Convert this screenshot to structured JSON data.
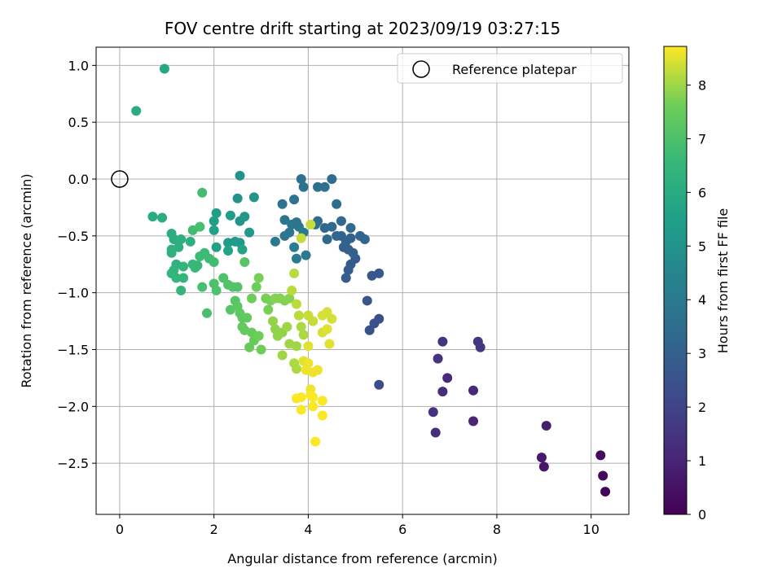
{
  "chart_data": {
    "type": "scatter",
    "title": "FOV centre drift starting at 2023/09/19 03:27:15",
    "xlabel": "Angular distance from reference (arcmin)",
    "ylabel": "Rotation from reference (arcmin)",
    "xlim": [
      -0.5,
      10.8
    ],
    "ylim": [
      -2.95,
      1.16
    ],
    "xticks": [
      0,
      2,
      4,
      6,
      8,
      10
    ],
    "yticks": [
      1.0,
      0.5,
      0.0,
      -0.5,
      -1.0,
      -1.5,
      -2.0,
      -2.5
    ],
    "xtick_labels": [
      "0",
      "2",
      "4",
      "6",
      "8",
      "10"
    ],
    "ytick_labels": [
      "1.0",
      "0.5",
      "0.0",
      "−0.5",
      "−1.0",
      "−1.5",
      "−2.0",
      "−2.5"
    ],
    "grid": true,
    "legend": {
      "location": "top-right",
      "entries": [
        "Reference platepar"
      ]
    },
    "reference_point": {
      "x": 0,
      "y": 0
    },
    "colorbar": {
      "label": "Hours from first FF file",
      "colormap": "viridis",
      "range": [
        0,
        8.72
      ],
      "ticks": [
        0,
        1,
        2,
        3,
        4,
        5,
        6,
        7,
        8
      ],
      "tick_labels": [
        "0",
        "1",
        "2",
        "3",
        "4",
        "5",
        "6",
        "7",
        "8"
      ]
    },
    "points": [
      {
        "x": 10.3,
        "y": -2.75,
        "c": 0.1
      },
      {
        "x": 10.25,
        "y": -2.61,
        "c": 0.2
      },
      {
        "x": 10.2,
        "y": -2.43,
        "c": 0.3
      },
      {
        "x": 9.0,
        "y": -2.53,
        "c": 0.6
      },
      {
        "x": 8.95,
        "y": -2.45,
        "c": 0.7
      },
      {
        "x": 9.05,
        "y": -2.17,
        "c": 0.8
      },
      {
        "x": 7.5,
        "y": -2.13,
        "c": 1.0
      },
      {
        "x": 7.5,
        "y": -1.86,
        "c": 1.1
      },
      {
        "x": 6.95,
        "y": -1.75,
        "c": 1.2
      },
      {
        "x": 6.85,
        "y": -1.87,
        "c": 1.3
      },
      {
        "x": 6.7,
        "y": -2.23,
        "c": 1.3
      },
      {
        "x": 6.65,
        "y": -2.05,
        "c": 1.4
      },
      {
        "x": 6.75,
        "y": -1.58,
        "c": 1.5
      },
      {
        "x": 6.85,
        "y": -1.43,
        "c": 1.5
      },
      {
        "x": 7.6,
        "y": -1.43,
        "c": 1.6
      },
      {
        "x": 7.65,
        "y": -1.48,
        "c": 1.6
      },
      {
        "x": 5.5,
        "y": -1.81,
        "c": 2.3
      },
      {
        "x": 5.5,
        "y": -1.23,
        "c": 2.4
      },
      {
        "x": 5.4,
        "y": -1.27,
        "c": 2.5
      },
      {
        "x": 5.3,
        "y": -1.33,
        "c": 2.5
      },
      {
        "x": 5.25,
        "y": -1.07,
        "c": 2.6
      },
      {
        "x": 5.5,
        "y": -0.83,
        "c": 2.7
      },
      {
        "x": 5.35,
        "y": -0.85,
        "c": 2.7
      },
      {
        "x": 4.8,
        "y": -0.87,
        "c": 2.8
      },
      {
        "x": 5.0,
        "y": -0.7,
        "c": 2.8
      },
      {
        "x": 4.9,
        "y": -0.75,
        "c": 2.9
      },
      {
        "x": 4.85,
        "y": -0.8,
        "c": 2.9
      },
      {
        "x": 4.95,
        "y": -0.65,
        "c": 3.0
      },
      {
        "x": 4.85,
        "y": -0.62,
        "c": 3.0
      },
      {
        "x": 4.75,
        "y": -0.6,
        "c": 3.0
      },
      {
        "x": 4.8,
        "y": -0.55,
        "c": 3.1
      },
      {
        "x": 4.7,
        "y": -0.5,
        "c": 3.1
      },
      {
        "x": 4.9,
        "y": -0.52,
        "c": 3.1
      },
      {
        "x": 5.1,
        "y": -0.5,
        "c": 3.2
      },
      {
        "x": 5.2,
        "y": -0.53,
        "c": 3.2
      },
      {
        "x": 4.6,
        "y": -0.5,
        "c": 3.2
      },
      {
        "x": 4.4,
        "y": -0.53,
        "c": 3.3
      },
      {
        "x": 4.5,
        "y": -0.42,
        "c": 3.3
      },
      {
        "x": 4.35,
        "y": -0.43,
        "c": 3.3
      },
      {
        "x": 4.9,
        "y": -0.43,
        "c": 3.4
      },
      {
        "x": 4.7,
        "y": -0.37,
        "c": 3.4
      },
      {
        "x": 4.2,
        "y": -0.37,
        "c": 3.4
      },
      {
        "x": 4.15,
        "y": -0.4,
        "c": 3.5
      },
      {
        "x": 4.6,
        "y": -0.22,
        "c": 3.5
      },
      {
        "x": 4.5,
        "y": 0.0,
        "c": 3.5
      },
      {
        "x": 4.2,
        "y": -0.07,
        "c": 3.6
      },
      {
        "x": 4.35,
        "y": -0.07,
        "c": 3.6
      },
      {
        "x": 3.85,
        "y": 0.0,
        "c": 3.6
      },
      {
        "x": 3.9,
        "y": -0.07,
        "c": 3.7
      },
      {
        "x": 3.7,
        "y": -0.18,
        "c": 3.7
      },
      {
        "x": 3.45,
        "y": -0.22,
        "c": 3.7
      },
      {
        "x": 3.5,
        "y": -0.36,
        "c": 3.8
      },
      {
        "x": 3.65,
        "y": -0.4,
        "c": 3.8
      },
      {
        "x": 3.75,
        "y": -0.38,
        "c": 3.8
      },
      {
        "x": 3.8,
        "y": -0.42,
        "c": 3.9
      },
      {
        "x": 3.6,
        "y": -0.47,
        "c": 3.9
      },
      {
        "x": 3.5,
        "y": -0.5,
        "c": 3.9
      },
      {
        "x": 3.3,
        "y": -0.55,
        "c": 4.0
      },
      {
        "x": 3.95,
        "y": -0.67,
        "c": 4.0
      },
      {
        "x": 3.75,
        "y": -0.7,
        "c": 4.1
      },
      {
        "x": 3.9,
        "y": -0.47,
        "c": 4.1
      },
      {
        "x": 3.7,
        "y": -0.6,
        "c": 4.2
      },
      {
        "x": 2.55,
        "y": 0.03,
        "c": 5.0
      },
      {
        "x": 2.5,
        "y": -0.17,
        "c": 5.0
      },
      {
        "x": 2.85,
        "y": -0.16,
        "c": 5.1
      },
      {
        "x": 2.55,
        "y": -0.37,
        "c": 5.1
      },
      {
        "x": 2.65,
        "y": -0.33,
        "c": 5.2
      },
      {
        "x": 2.75,
        "y": -0.47,
        "c": 5.2
      },
      {
        "x": 2.55,
        "y": -0.56,
        "c": 5.3
      },
      {
        "x": 2.45,
        "y": -0.55,
        "c": 5.3
      },
      {
        "x": 2.3,
        "y": -0.56,
        "c": 5.4
      },
      {
        "x": 2.35,
        "y": -0.32,
        "c": 5.4
      },
      {
        "x": 2.05,
        "y": -0.3,
        "c": 5.5
      },
      {
        "x": 2.0,
        "y": -0.37,
        "c": 5.5
      },
      {
        "x": 2.0,
        "y": -0.45,
        "c": 5.6
      },
      {
        "x": 2.05,
        "y": -0.6,
        "c": 5.6
      },
      {
        "x": 2.3,
        "y": -0.63,
        "c": 5.7
      },
      {
        "x": 2.6,
        "y": -0.62,
        "c": 5.7
      },
      {
        "x": 0.95,
        "y": 0.97,
        "c": 5.9
      },
      {
        "x": 0.35,
        "y": 0.6,
        "c": 6.0
      },
      {
        "x": 0.7,
        "y": -0.33,
        "c": 6.0
      },
      {
        "x": 0.9,
        "y": -0.34,
        "c": 6.1
      },
      {
        "x": 1.1,
        "y": -0.48,
        "c": 6.1
      },
      {
        "x": 1.15,
        "y": -0.53,
        "c": 6.1
      },
      {
        "x": 1.3,
        "y": -0.53,
        "c": 6.2
      },
      {
        "x": 1.5,
        "y": -0.55,
        "c": 6.2
      },
      {
        "x": 1.25,
        "y": -0.6,
        "c": 6.2
      },
      {
        "x": 1.1,
        "y": -0.62,
        "c": 6.3
      },
      {
        "x": 1.1,
        "y": -0.65,
        "c": 6.3
      },
      {
        "x": 1.2,
        "y": -0.75,
        "c": 6.3
      },
      {
        "x": 1.35,
        "y": -0.77,
        "c": 6.4
      },
      {
        "x": 1.15,
        "y": -0.8,
        "c": 6.4
      },
      {
        "x": 1.1,
        "y": -0.83,
        "c": 6.4
      },
      {
        "x": 1.2,
        "y": -0.87,
        "c": 6.5
      },
      {
        "x": 1.35,
        "y": -0.87,
        "c": 6.5
      },
      {
        "x": 1.3,
        "y": -0.98,
        "c": 6.5
      },
      {
        "x": 1.55,
        "y": -0.75,
        "c": 6.6
      },
      {
        "x": 1.65,
        "y": -0.76,
        "c": 6.6
      },
      {
        "x": 1.6,
        "y": -0.78,
        "c": 6.6
      },
      {
        "x": 1.7,
        "y": -0.68,
        "c": 6.7
      },
      {
        "x": 1.8,
        "y": -0.65,
        "c": 6.7
      },
      {
        "x": 1.9,
        "y": -0.7,
        "c": 6.7
      },
      {
        "x": 2.0,
        "y": -0.73,
        "c": 6.8
      },
      {
        "x": 1.75,
        "y": -0.12,
        "c": 6.8
      },
      {
        "x": 1.55,
        "y": -0.45,
        "c": 6.8
      },
      {
        "x": 1.7,
        "y": -0.42,
        "c": 6.9
      },
      {
        "x": 1.75,
        "y": -0.95,
        "c": 6.9
      },
      {
        "x": 1.85,
        "y": -1.18,
        "c": 6.9
      },
      {
        "x": 2.0,
        "y": -0.92,
        "c": 7.0
      },
      {
        "x": 2.05,
        "y": -0.98,
        "c": 7.0
      },
      {
        "x": 2.2,
        "y": -0.87,
        "c": 7.0
      },
      {
        "x": 2.3,
        "y": -0.93,
        "c": 7.1
      },
      {
        "x": 2.4,
        "y": -0.95,
        "c": 7.1
      },
      {
        "x": 2.5,
        "y": -0.95,
        "c": 7.1
      },
      {
        "x": 2.65,
        "y": -0.73,
        "c": 7.2
      },
      {
        "x": 2.35,
        "y": -1.15,
        "c": 7.2
      },
      {
        "x": 2.45,
        "y": -1.07,
        "c": 7.2
      },
      {
        "x": 2.5,
        "y": -1.12,
        "c": 7.3
      },
      {
        "x": 2.55,
        "y": -1.18,
        "c": 7.3
      },
      {
        "x": 2.6,
        "y": -1.22,
        "c": 7.3
      },
      {
        "x": 2.6,
        "y": -1.3,
        "c": 7.4
      },
      {
        "x": 2.7,
        "y": -1.22,
        "c": 7.4
      },
      {
        "x": 2.65,
        "y": -1.33,
        "c": 7.4
      },
      {
        "x": 2.8,
        "y": -1.35,
        "c": 7.5
      },
      {
        "x": 2.75,
        "y": -1.48,
        "c": 7.5
      },
      {
        "x": 2.85,
        "y": -1.42,
        "c": 7.5
      },
      {
        "x": 2.95,
        "y": -1.38,
        "c": 7.6
      },
      {
        "x": 3.0,
        "y": -1.5,
        "c": 7.6
      },
      {
        "x": 2.8,
        "y": -1.05,
        "c": 7.6
      },
      {
        "x": 2.9,
        "y": -0.95,
        "c": 7.6
      },
      {
        "x": 2.95,
        "y": -0.87,
        "c": 7.7
      },
      {
        "x": 3.1,
        "y": -1.05,
        "c": 7.7
      },
      {
        "x": 3.15,
        "y": -1.15,
        "c": 7.7
      },
      {
        "x": 3.2,
        "y": -1.07,
        "c": 7.7
      },
      {
        "x": 3.3,
        "y": -1.05,
        "c": 7.8
      },
      {
        "x": 3.4,
        "y": -1.05,
        "c": 7.8
      },
      {
        "x": 3.5,
        "y": -1.07,
        "c": 7.8
      },
      {
        "x": 3.6,
        "y": -1.05,
        "c": 7.8
      },
      {
        "x": 3.25,
        "y": -1.25,
        "c": 7.9
      },
      {
        "x": 3.3,
        "y": -1.32,
        "c": 7.9
      },
      {
        "x": 3.35,
        "y": -1.38,
        "c": 7.9
      },
      {
        "x": 3.45,
        "y": -1.35,
        "c": 7.9
      },
      {
        "x": 3.55,
        "y": -1.3,
        "c": 8.0
      },
      {
        "x": 3.45,
        "y": -1.55,
        "c": 8.0
      },
      {
        "x": 3.6,
        "y": -1.45,
        "c": 8.0
      },
      {
        "x": 3.75,
        "y": -1.47,
        "c": 8.0
      },
      {
        "x": 3.7,
        "y": -1.62,
        "c": 8.1
      },
      {
        "x": 3.75,
        "y": -1.67,
        "c": 8.1
      },
      {
        "x": 3.85,
        "y": -1.3,
        "c": 8.1
      },
      {
        "x": 3.9,
        "y": -1.37,
        "c": 8.1
      },
      {
        "x": 3.8,
        "y": -1.2,
        "c": 8.2
      },
      {
        "x": 3.75,
        "y": -1.1,
        "c": 8.2
      },
      {
        "x": 3.65,
        "y": -0.98,
        "c": 8.2
      },
      {
        "x": 3.7,
        "y": -0.83,
        "c": 8.2
      },
      {
        "x": 3.85,
        "y": -0.52,
        "c": 8.3
      },
      {
        "x": 4.05,
        "y": -0.4,
        "c": 8.3
      },
      {
        "x": 4.0,
        "y": -1.2,
        "c": 8.3
      },
      {
        "x": 4.1,
        "y": -1.25,
        "c": 8.3
      },
      {
        "x": 4.3,
        "y": -1.2,
        "c": 8.4
      },
      {
        "x": 4.4,
        "y": -1.17,
        "c": 8.4
      },
      {
        "x": 4.5,
        "y": -1.23,
        "c": 8.4
      },
      {
        "x": 4.3,
        "y": -1.35,
        "c": 8.4
      },
      {
        "x": 4.4,
        "y": -1.32,
        "c": 8.5
      },
      {
        "x": 4.45,
        "y": -1.45,
        "c": 8.5
      },
      {
        "x": 4.0,
        "y": -1.47,
        "c": 8.5
      },
      {
        "x": 3.9,
        "y": -1.6,
        "c": 8.5
      },
      {
        "x": 4.0,
        "y": -1.62,
        "c": 8.6
      },
      {
        "x": 4.1,
        "y": -1.7,
        "c": 8.6
      },
      {
        "x": 3.95,
        "y": -1.68,
        "c": 8.6
      },
      {
        "x": 4.2,
        "y": -1.68,
        "c": 8.6
      },
      {
        "x": 4.05,
        "y": -1.85,
        "c": 8.6
      },
      {
        "x": 4.05,
        "y": -1.9,
        "c": 8.7
      },
      {
        "x": 4.1,
        "y": -1.92,
        "c": 8.7
      },
      {
        "x": 3.85,
        "y": -1.92,
        "c": 8.7
      },
      {
        "x": 3.75,
        "y": -1.93,
        "c": 8.7
      },
      {
        "x": 4.3,
        "y": -1.95,
        "c": 8.7
      },
      {
        "x": 4.1,
        "y": -2.0,
        "c": 8.7
      },
      {
        "x": 3.85,
        "y": -2.03,
        "c": 8.7
      },
      {
        "x": 4.3,
        "y": -2.08,
        "c": 8.7
      },
      {
        "x": 4.15,
        "y": -2.31,
        "c": 8.7
      }
    ]
  }
}
